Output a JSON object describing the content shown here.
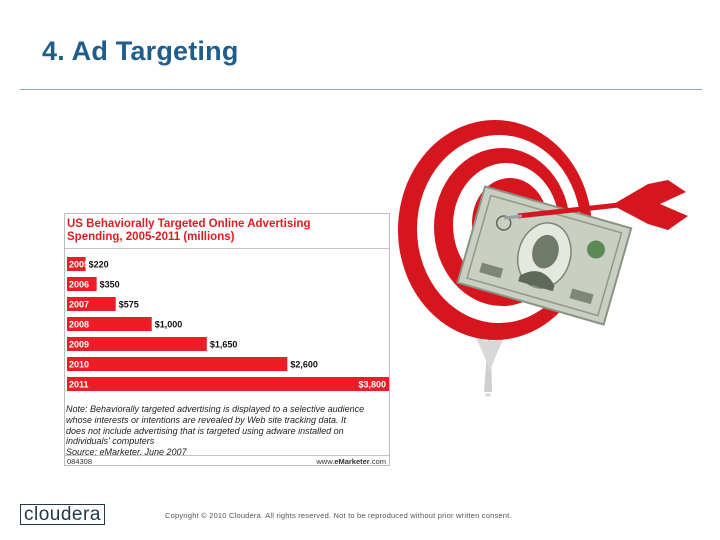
{
  "slide": {
    "title": "4. Ad Targeting"
  },
  "chart": {
    "title_line1": "US Behaviorally Targeted Online Advertising",
    "title_line2": "Spending, 2005-2011 (millions)",
    "note_lines": [
      "Note: Behaviorally targeted advertising is displayed to a selective audience",
      "whose interests or intentions are revealed by Web site tracking data. It",
      "does not include advertising that is targeted using adware installed on",
      "individuals' computers",
      "Source: eMarketer, June 2007"
    ],
    "chart_id": "084308",
    "source_prefix": "www.",
    "source_brand": "eMarketer",
    "source_suffix": ".com"
  },
  "chart_data": {
    "type": "bar",
    "orientation": "horizontal",
    "title": "US Behaviorally Targeted Online Advertising Spending, 2005-2011 (millions)",
    "categories": [
      "2005",
      "2006",
      "2007",
      "2008",
      "2009",
      "2010",
      "2011"
    ],
    "values": [
      220,
      350,
      575,
      1000,
      1650,
      2600,
      3800
    ],
    "value_labels": [
      "$220",
      "$350",
      "$575",
      "$1,000",
      "$1,650",
      "$2,600",
      "$3,800"
    ],
    "xlim": [
      0,
      3800
    ],
    "grid": false,
    "legend": "none",
    "bar_color": "#ee1c25",
    "source": "Source: eMarketer, June 2007"
  },
  "footer": {
    "logo_text": "cloudera",
    "copyright": "Copyright © 2010 Cloudera. All rights reserved. Not to be reproduced without prior written consent."
  },
  "colors": {
    "title": "#1f5e8c",
    "accent_red": "#e11b22",
    "logo": "#24384a"
  },
  "images": {
    "target_art": "dartboard-with-dart-and-dollar-bill"
  }
}
